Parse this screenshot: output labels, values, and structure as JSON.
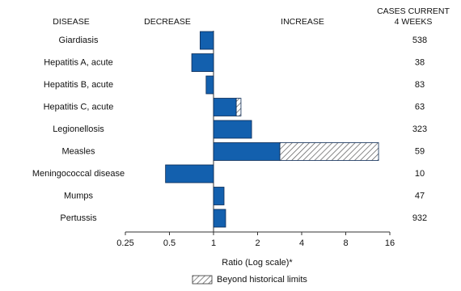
{
  "chart_data": {
    "type": "bar",
    "orientation": "horizontal",
    "log_scale": true,
    "column_headers": {
      "disease": "DISEASE",
      "decrease": "DECREASE",
      "increase": "INCREASE",
      "cases": [
        "CASES CURRENT",
        "4 WEEKS"
      ]
    },
    "categories": [
      "Giardiasis",
      "Hepatitis A, acute",
      "Hepatitis B, acute",
      "Hepatitis C, acute",
      "Legionellosis",
      "Measles",
      "Meningococcal disease",
      "Mumps",
      "Pertussis"
    ],
    "values": [
      0.81,
      0.71,
      0.89,
      1.54,
      1.82,
      13.4,
      0.47,
      1.18,
      1.21
    ],
    "historical_limits": [
      null,
      null,
      null,
      1.43,
      null,
      2.84,
      null,
      null,
      null
    ],
    "cases": [
      538,
      38,
      83,
      63,
      323,
      59,
      10,
      47,
      932
    ],
    "color": "#1360ae",
    "edge_color": "#0b2a55",
    "xlim": [
      0.25,
      16
    ],
    "xticks": [
      0.25,
      0.5,
      1,
      2,
      4,
      8,
      16
    ],
    "xlabel": "Ratio (Log scale)*",
    "legend_label": "Beyond historical limits"
  }
}
